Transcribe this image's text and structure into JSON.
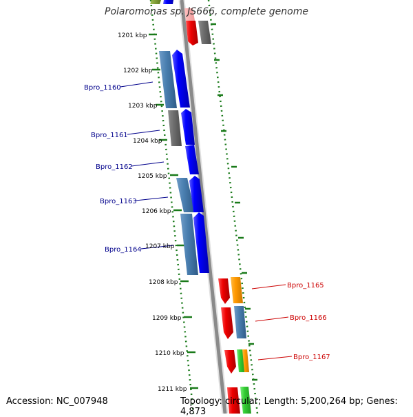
{
  "title": "Polaromonas sp. JS666, complete genome",
  "footer": {
    "accession": "Accession: NC_007948",
    "info": "Topology: circular; Length: 5,200,264 bp; Genes: 4,873"
  },
  "colors": {
    "backbone": "#8a8a8a",
    "tick": "#1a7a1a",
    "blue": "#0000ee",
    "steel": "#4a7fb0",
    "gray": "#707070",
    "red": "#ee0000",
    "orange": "#ff9900",
    "green": "#33cc33",
    "olive": "#7a9a30",
    "label_left": "#00008b",
    "label_right": "#cc0000"
  },
  "kbp_labels": [
    "1201 kbp",
    "1202 kbp",
    "1203 kbp",
    "1204 kbp",
    "1205 kbp",
    "1206 kbp",
    "1207 kbp",
    "1208 kbp",
    "1209 kbp",
    "1210 kbp",
    "1211 kbp"
  ],
  "gene_labels_left": [
    "Bpro_1160",
    "Bpro_1161",
    "Bpro_1162",
    "Bpro_1163",
    "Bpro_1164"
  ],
  "gene_labels_right": [
    "Bpro_1165",
    "Bpro_1166",
    "Bpro_1167"
  ]
}
